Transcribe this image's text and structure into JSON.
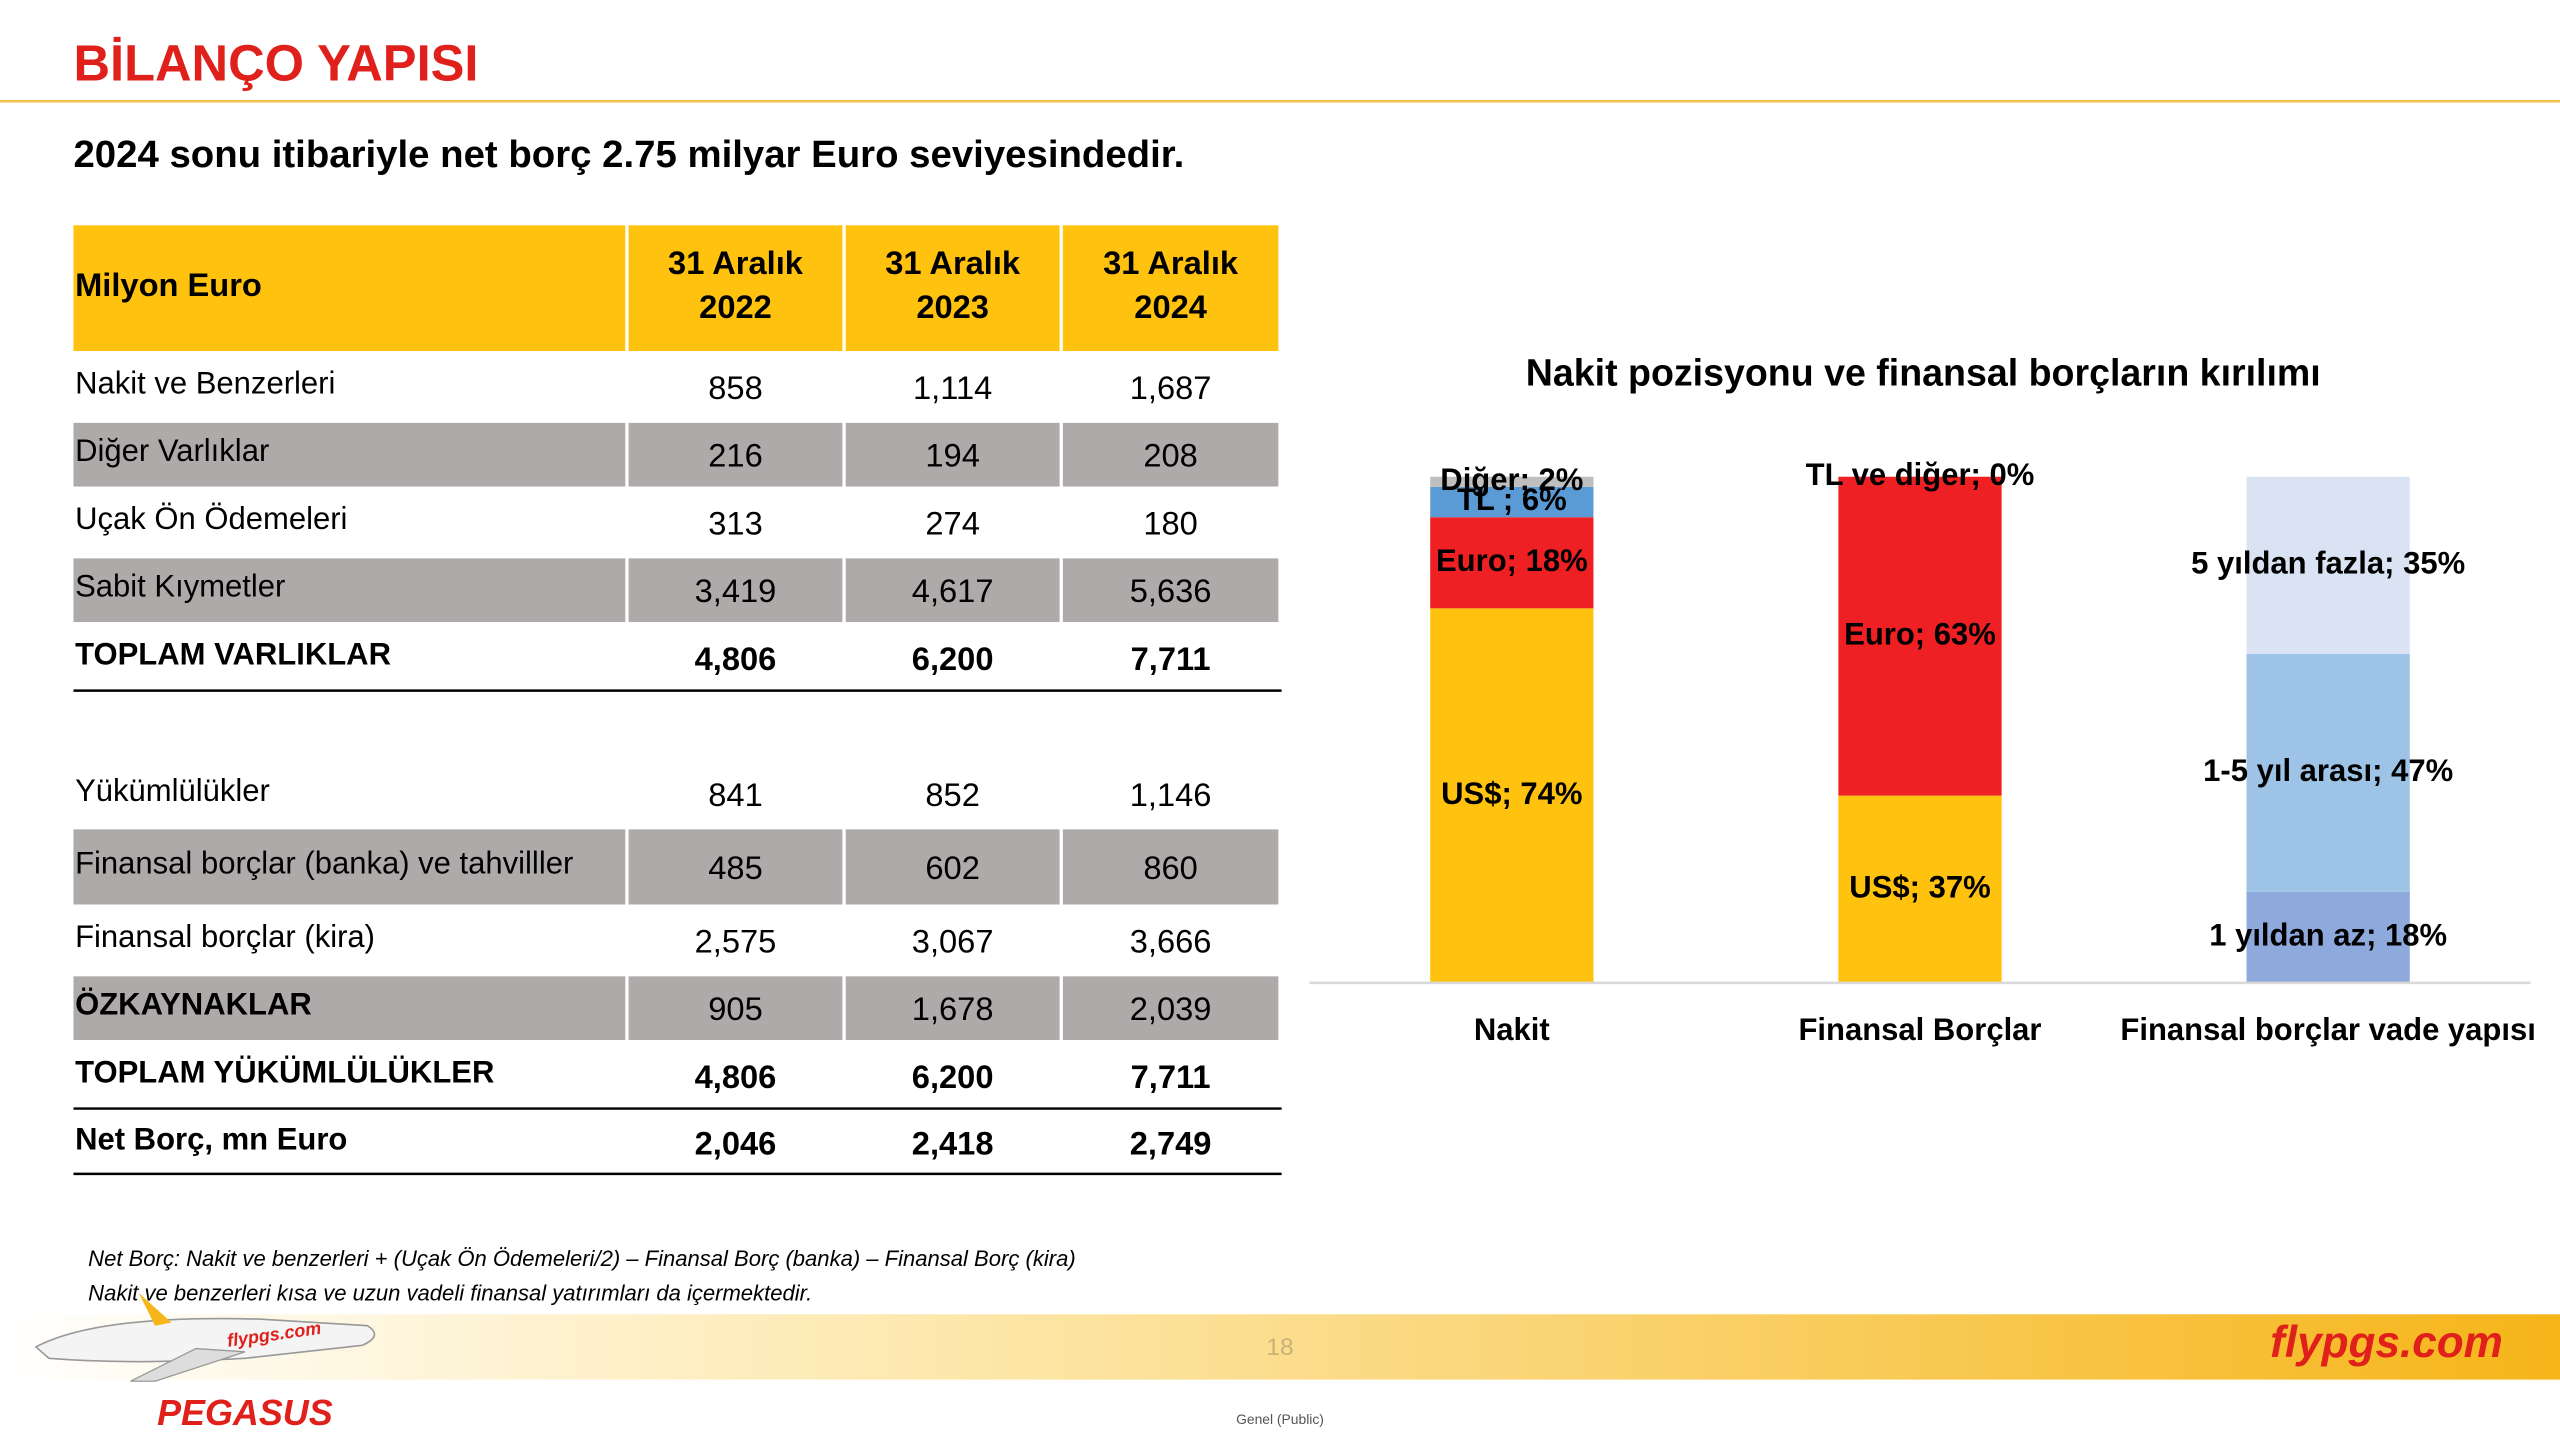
{
  "header": {
    "title": "BİLANÇO YAPISI",
    "subtitle": "2024 sonu itibariyle net borç 2.75 milyar Euro seviyesindedir."
  },
  "table": {
    "columns": [
      [
        "Milyon Euro"
      ],
      [
        "31 Aralık",
        "2022"
      ],
      [
        "31 Aralık",
        "2023"
      ],
      [
        "31 Aralık",
        "2024"
      ]
    ],
    "rows": [
      [
        "Nakit ve Benzerleri",
        "858",
        "1,114",
        "1,687"
      ],
      [
        "Diğer Varlıklar",
        "216",
        "194",
        "208"
      ],
      [
        "Uçak Ön Ödemeleri",
        "313",
        "274",
        "180"
      ],
      [
        "Sabit Kıymetler",
        "3,419",
        "4,617",
        "5,636"
      ],
      [
        "TOPLAM VARLIKLAR",
        "4,806",
        "6,200",
        "7,711"
      ],
      [
        "Yükümlülükler",
        "841",
        "852",
        "1,146"
      ],
      [
        "Finansal borçlar (banka) ve tahvilller",
        "485",
        "602",
        "860"
      ],
      [
        "Finansal borçlar (kira)",
        "2,575",
        "3,067",
        "3,666"
      ],
      [
        "ÖZKAYNAKLAR",
        "905",
        "1,678",
        "2,039"
      ],
      [
        "TOPLAM YÜKÜMLÜLÜKLER",
        "4,806",
        "6,200",
        "7,711"
      ],
      [
        "Net Borç, mn Euro",
        "2,046",
        "2,418",
        "2,749"
      ]
    ]
  },
  "chart_data": {
    "type": "stacked_bar",
    "title": "Nakit pozisyonu ve finansal borçların kırılımı",
    "categories": [
      "Nakit",
      "Finansal Borçlar",
      "Finansal borçlar vade yapısı"
    ],
    "ylim": [
      0,
      100
    ],
    "stacks": [
      {
        "segments": [
          {
            "value": 74,
            "label": "US$; 74%",
            "color": "#ffc20e"
          },
          {
            "value": 18,
            "label": "Euro; 18%",
            "color": "#ee2024"
          },
          {
            "value": 6,
            "label": "TL ; 6%",
            "color": "#5b9bd5"
          },
          {
            "value": 2,
            "label": "Diğer; 2%",
            "color": "#bfbfbf"
          }
        ]
      },
      {
        "segments": [
          {
            "value": 37,
            "label": "US$; 37%",
            "color": "#ffc20e"
          },
          {
            "value": 63,
            "label": "Euro; 63%",
            "color": "#ee2024"
          },
          {
            "value": 0,
            "label": "TL ve diğer; 0%",
            "color": "#5b9bd5"
          }
        ]
      },
      {
        "segments": [
          {
            "value": 18,
            "label": "1 yıldan az; 18%",
            "color": "#8ea9db"
          },
          {
            "value": 47,
            "label": "1-5 yıl arası; 47%",
            "color": "#9dc3e6"
          },
          {
            "value": 35,
            "label": "5 yıldan fazla; 35%",
            "color": "#dae3f3"
          }
        ]
      }
    ]
  },
  "footer": {
    "notes": [
      "Net Borç: Nakit ve benzerleri + (Uçak Ön Ödemeleri/2) – Finansal Borç (banka) –  Finansal Borç (kira)",
      "Nakit ve benzerleri kısa ve uzun vadeli finansal yatırımları da içermektedir."
    ],
    "page": "18",
    "brand": "flypgs.com",
    "logo": "PEGASUS",
    "classification": "Genel (Public)"
  }
}
